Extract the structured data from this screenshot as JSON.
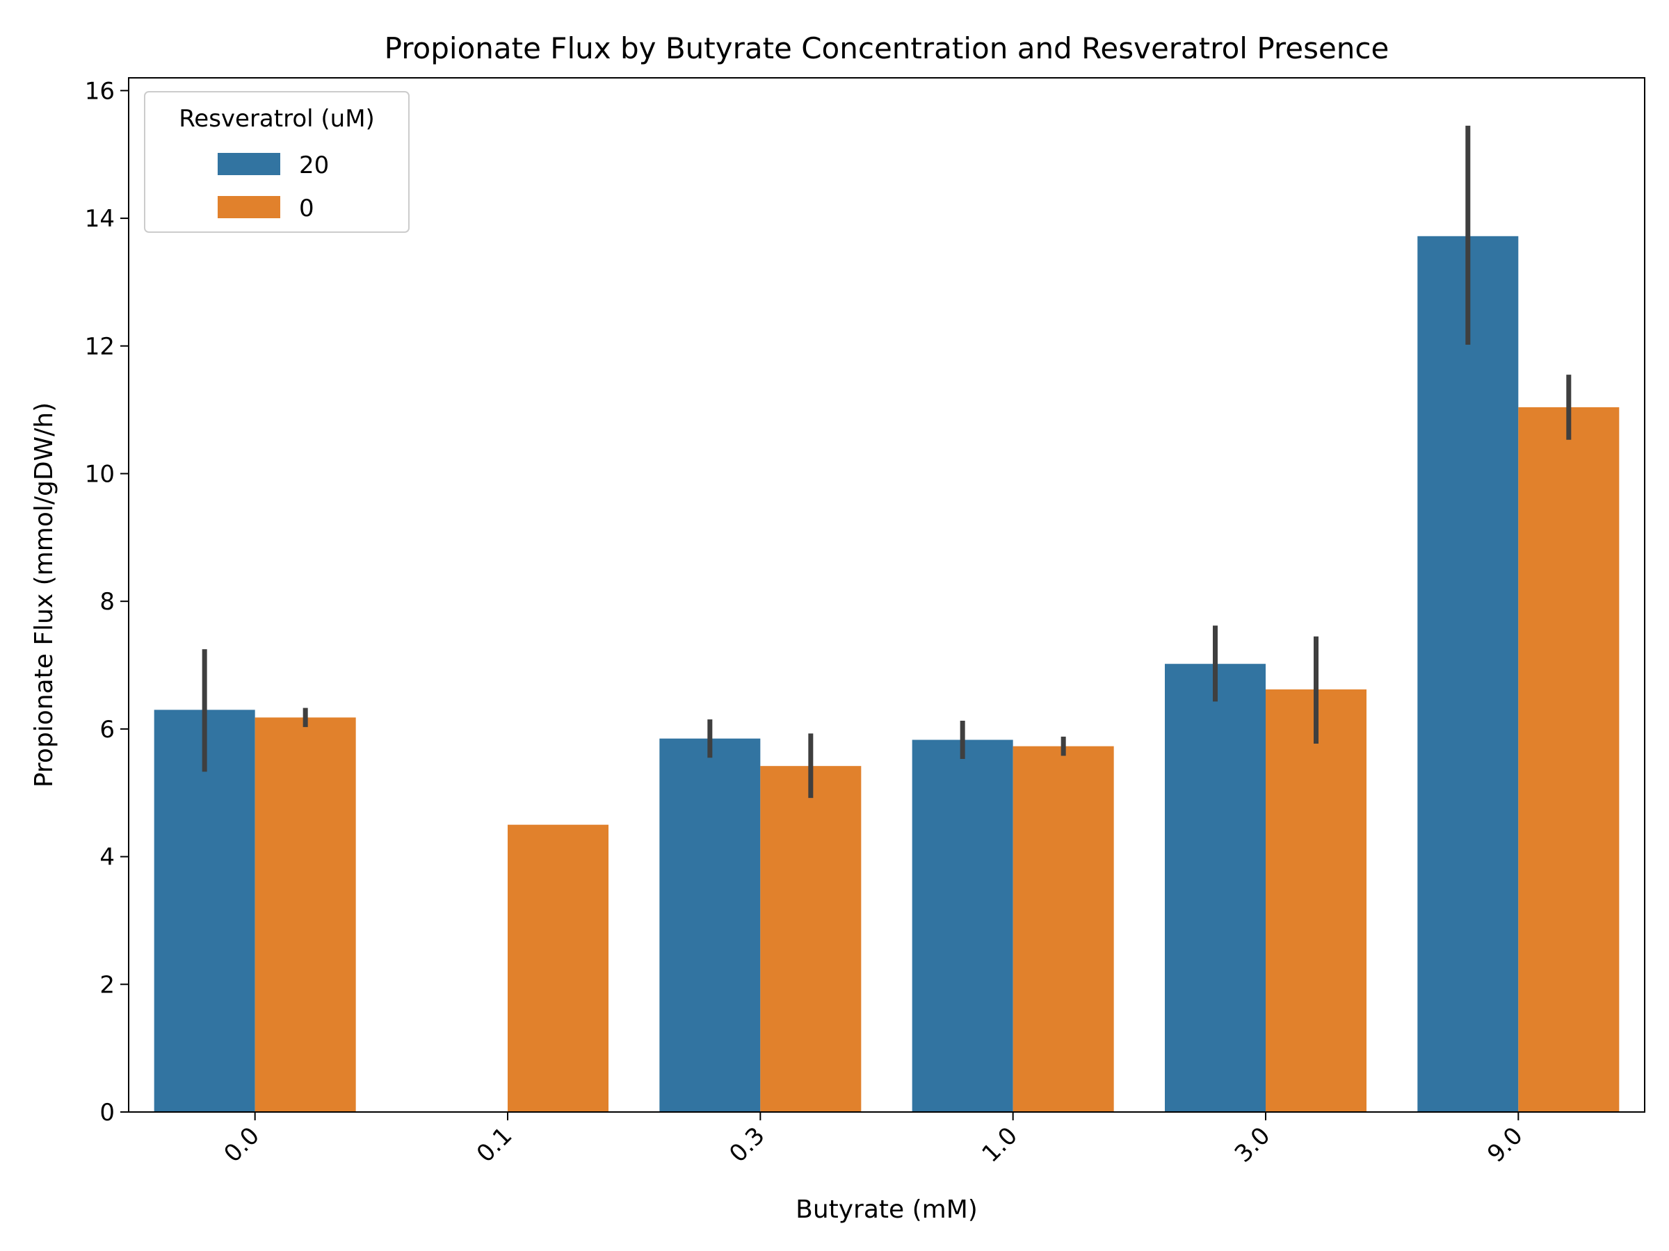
{
  "chart_data": {
    "type": "bar",
    "title": "Propionate Flux by Butyrate Concentration and Resveratrol Presence",
    "xlabel": "Butyrate (mM)",
    "ylabel": "Propionate Flux (mmol/gDW/h)",
    "categories": [
      "0.0",
      "0.1",
      "0.3",
      "1.0",
      "3.0",
      "9.0"
    ],
    "ylim": [
      0,
      16.2
    ],
    "yticks": [
      0,
      2,
      4,
      6,
      8,
      10,
      12,
      14,
      16
    ],
    "grid": false,
    "legend": {
      "title": "Resveratrol (uM)",
      "placement": "top-left"
    },
    "series": [
      {
        "name": "20",
        "color": "#3274a1",
        "values": [
          6.3,
          null,
          5.85,
          5.83,
          7.02,
          13.72
        ],
        "error_low": [
          5.33,
          null,
          5.55,
          5.53,
          6.43,
          12.02
        ],
        "error_high": [
          7.25,
          null,
          6.15,
          6.13,
          7.62,
          15.45
        ]
      },
      {
        "name": "0",
        "color": "#e1812c",
        "values": [
          6.18,
          4.5,
          5.42,
          5.73,
          6.62,
          11.04
        ],
        "error_low": [
          6.03,
          null,
          4.92,
          5.58,
          5.77,
          10.53
        ],
        "error_high": [
          6.33,
          null,
          5.93,
          5.88,
          7.45,
          11.55
        ]
      }
    ],
    "error_bar_color": "#3f3f3f"
  }
}
